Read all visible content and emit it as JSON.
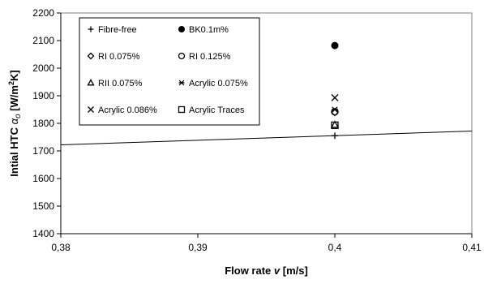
{
  "chart_data": {
    "type": "scatter",
    "title": "",
    "xlabel": {
      "text": "Flow rate",
      "symbol": "v",
      "unit": "[m/s]"
    },
    "ylabel": {
      "text": "Intial HTC",
      "symbol": "α",
      "subscript": "o",
      "unit_prefix": "[W/m",
      "unit_sup": "2",
      "unit_suffix": "K]"
    },
    "xlim": [
      0.38,
      0.41
    ],
    "ylim": [
      1400,
      2200
    ],
    "x_ticks": [
      {
        "value": 0.38,
        "label": "0,38"
      },
      {
        "value": 0.39,
        "label": "0,39"
      },
      {
        "value": 0.4,
        "label": "0,4"
      },
      {
        "value": 0.41,
        "label": "0,41"
      }
    ],
    "y_ticks": [
      {
        "value": 1400,
        "label": "1400"
      },
      {
        "value": 1500,
        "label": "1500"
      },
      {
        "value": 1600,
        "label": "1600"
      },
      {
        "value": 1700,
        "label": "1700"
      },
      {
        "value": 1800,
        "label": "1800"
      },
      {
        "value": 1900,
        "label": "1900"
      },
      {
        "value": 2000,
        "label": "2000"
      },
      {
        "value": 2100,
        "label": "2100"
      },
      {
        "value": 2200,
        "label": "2200"
      }
    ],
    "grid": false,
    "legend_position": "top-left",
    "series": [
      {
        "name": "Fibre-free",
        "marker": "plus",
        "x": [
          0.4
        ],
        "y": [
          1755
        ]
      },
      {
        "name": "BK0.1m%",
        "marker": "filled-circle",
        "x": [
          0.4
        ],
        "y": [
          2082
        ]
      },
      {
        "name": "RI 0.075%",
        "marker": "diamond",
        "x": [
          0.4
        ],
        "y": [
          1840
        ]
      },
      {
        "name": "RI 0.125%",
        "marker": "circle",
        "x": [
          0.4
        ],
        "y": [
          1842
        ]
      },
      {
        "name": "RII 0.075%",
        "marker": "triangle",
        "x": [
          0.4
        ],
        "y": [
          1795
        ]
      },
      {
        "name": "Acrylic 0.075%",
        "marker": "asterisk",
        "x": [
          0.4
        ],
        "y": [
          1850
        ]
      },
      {
        "name": "Acrylic 0.086%",
        "marker": "x",
        "x": [
          0.4
        ],
        "y": [
          1893
        ]
      },
      {
        "name": "Acrylic Traces",
        "marker": "square",
        "x": [
          0.4
        ],
        "y": [
          1793
        ]
      }
    ],
    "trend_line": {
      "x": [
        0.38,
        0.41
      ],
      "y": [
        1722,
        1772
      ]
    }
  }
}
